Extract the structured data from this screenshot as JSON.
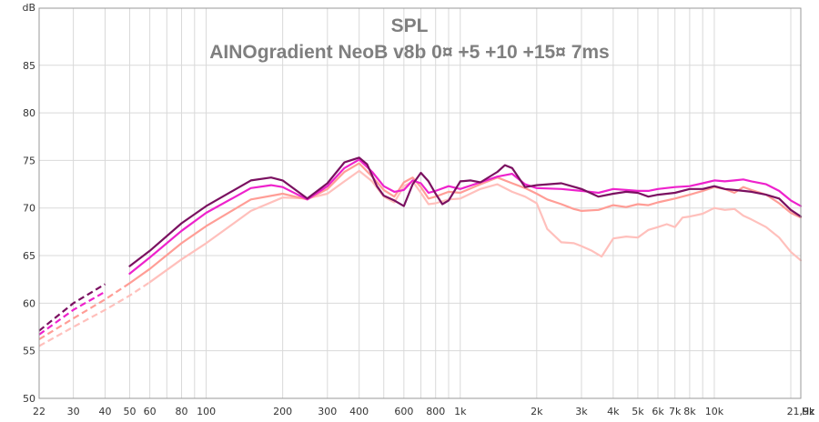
{
  "chart_data": {
    "type": "line",
    "title": "SPL",
    "subtitle": "AINOgradient NeoB v8b 0¤ +5 +10 +15¤ 7ms",
    "ylabel": "dB",
    "xunit": "Hz",
    "xscale": "log",
    "xlim": [
      22,
      21900
    ],
    "ylim": [
      50,
      91
    ],
    "grid": true,
    "y_ticks": [
      50,
      55,
      60,
      65,
      70,
      75,
      80,
      85
    ],
    "x_ticks": [
      {
        "v": 22,
        "label": "22"
      },
      {
        "v": 30,
        "label": "30"
      },
      {
        "v": 40,
        "label": "40"
      },
      {
        "v": 50,
        "label": "50"
      },
      {
        "v": 60,
        "label": "60"
      },
      {
        "v": 80,
        "label": "80"
      },
      {
        "v": 100,
        "label": "100"
      },
      {
        "v": 200,
        "label": "200"
      },
      {
        "v": 300,
        "label": "300"
      },
      {
        "v": 400,
        "label": "400"
      },
      {
        "v": 600,
        "label": "600"
      },
      {
        "v": 800,
        "label": "800"
      },
      {
        "v": 1000,
        "label": "1k"
      },
      {
        "v": 2000,
        "label": "2k"
      },
      {
        "v": 3000,
        "label": "3k"
      },
      {
        "v": 4000,
        "label": "4k"
      },
      {
        "v": 5000,
        "label": "5k"
      },
      {
        "v": 6000,
        "label": "6k"
      },
      {
        "v": 7000,
        "label": "7k"
      },
      {
        "v": 8000,
        "label": "8k"
      },
      {
        "v": 10000,
        "label": "10k"
      },
      {
        "v": 21900,
        "label": "21,9k"
      }
    ],
    "series": [
      {
        "color": "#ffc0bc",
        "dashed_until": 60,
        "points": [
          [
            22,
            55.5
          ],
          [
            30,
            57.5
          ],
          [
            40,
            59.3
          ],
          [
            50,
            60.8
          ],
          [
            60,
            62.2
          ],
          [
            80,
            64.6
          ],
          [
            100,
            66.3
          ],
          [
            150,
            69.7
          ],
          [
            200,
            71.1
          ],
          [
            250,
            71.0
          ],
          [
            300,
            71.5
          ],
          [
            350,
            72.8
          ],
          [
            400,
            73.9
          ],
          [
            450,
            72.8
          ],
          [
            500,
            71.2
          ],
          [
            550,
            70.6
          ],
          [
            600,
            72.3
          ],
          [
            650,
            72.8
          ],
          [
            700,
            71.6
          ],
          [
            750,
            70.4
          ],
          [
            800,
            70.5
          ],
          [
            900,
            70.9
          ],
          [
            1000,
            71.0
          ],
          [
            1200,
            72.0
          ],
          [
            1400,
            72.5
          ],
          [
            1600,
            71.7
          ],
          [
            1800,
            71.2
          ],
          [
            2000,
            70.5
          ],
          [
            2200,
            67.8
          ],
          [
            2500,
            66.4
          ],
          [
            2800,
            66.3
          ],
          [
            3000,
            66.0
          ],
          [
            3300,
            65.5
          ],
          [
            3600,
            64.9
          ],
          [
            4000,
            66.8
          ],
          [
            4500,
            67.0
          ],
          [
            5000,
            66.9
          ],
          [
            5500,
            67.7
          ],
          [
            6000,
            68.0
          ],
          [
            6500,
            68.3
          ],
          [
            7000,
            68.0
          ],
          [
            7500,
            69.0
          ],
          [
            8000,
            69.1
          ],
          [
            9000,
            69.4
          ],
          [
            10000,
            70.0
          ],
          [
            11000,
            69.8
          ],
          [
            12000,
            69.9
          ],
          [
            13000,
            69.2
          ],
          [
            14000,
            68.8
          ],
          [
            16000,
            68.0
          ],
          [
            18000,
            66.9
          ],
          [
            20000,
            65.4
          ],
          [
            21900,
            64.5
          ]
        ]
      },
      {
        "color": "#ff9d96",
        "dashed_until": 50,
        "points": [
          [
            22,
            56.2
          ],
          [
            30,
            58.4
          ],
          [
            40,
            60.4
          ],
          [
            50,
            62.1
          ],
          [
            60,
            63.6
          ],
          [
            80,
            66.3
          ],
          [
            100,
            68.1
          ],
          [
            150,
            70.9
          ],
          [
            200,
            71.5
          ],
          [
            250,
            70.9
          ],
          [
            300,
            72.0
          ],
          [
            350,
            73.8
          ],
          [
            400,
            74.7
          ],
          [
            450,
            73.3
          ],
          [
            500,
            71.9
          ],
          [
            550,
            71.2
          ],
          [
            600,
            72.7
          ],
          [
            650,
            73.2
          ],
          [
            700,
            72.2
          ],
          [
            750,
            71.0
          ],
          [
            800,
            71.2
          ],
          [
            900,
            71.7
          ],
          [
            1000,
            71.6
          ],
          [
            1200,
            72.5
          ],
          [
            1400,
            73.2
          ],
          [
            1600,
            72.6
          ],
          [
            1800,
            72.1
          ],
          [
            2000,
            71.5
          ],
          [
            2200,
            70.9
          ],
          [
            2500,
            70.4
          ],
          [
            2800,
            69.9
          ],
          [
            3000,
            69.7
          ],
          [
            3500,
            69.8
          ],
          [
            4000,
            70.3
          ],
          [
            4500,
            70.1
          ],
          [
            5000,
            70.4
          ],
          [
            5500,
            70.3
          ],
          [
            6000,
            70.6
          ],
          [
            7000,
            71.0
          ],
          [
            8000,
            71.4
          ],
          [
            9000,
            71.8
          ],
          [
            10000,
            72.2
          ],
          [
            11000,
            72.0
          ],
          [
            12000,
            71.6
          ],
          [
            13000,
            72.2
          ],
          [
            14000,
            71.9
          ],
          [
            16000,
            71.4
          ],
          [
            18000,
            70.5
          ],
          [
            20000,
            69.5
          ],
          [
            21900,
            69.0
          ]
        ]
      },
      {
        "color": "#ee22cc",
        "dashed_until": 45,
        "points": [
          [
            22,
            56.7
          ],
          [
            30,
            59.3
          ],
          [
            40,
            61.2
          ],
          [
            50,
            63.1
          ],
          [
            60,
            64.8
          ],
          [
            80,
            67.6
          ],
          [
            100,
            69.5
          ],
          [
            150,
            72.1
          ],
          [
            180,
            72.4
          ],
          [
            200,
            72.2
          ],
          [
            250,
            70.9
          ],
          [
            300,
            72.3
          ],
          [
            350,
            74.2
          ],
          [
            400,
            75.1
          ],
          [
            450,
            73.8
          ],
          [
            500,
            72.3
          ],
          [
            550,
            71.7
          ],
          [
            600,
            71.9
          ],
          [
            650,
            72.9
          ],
          [
            700,
            72.6
          ],
          [
            750,
            71.6
          ],
          [
            800,
            71.8
          ],
          [
            900,
            72.3
          ],
          [
            1000,
            72.0
          ],
          [
            1200,
            72.7
          ],
          [
            1400,
            73.3
          ],
          [
            1600,
            73.6
          ],
          [
            1800,
            72.5
          ],
          [
            2000,
            72.1
          ],
          [
            2500,
            72.0
          ],
          [
            3000,
            71.8
          ],
          [
            3500,
            71.6
          ],
          [
            4000,
            72.0
          ],
          [
            4500,
            71.9
          ],
          [
            5000,
            71.8
          ],
          [
            5500,
            71.8
          ],
          [
            6000,
            72.0
          ],
          [
            7000,
            72.2
          ],
          [
            8000,
            72.3
          ],
          [
            9000,
            72.6
          ],
          [
            10000,
            72.9
          ],
          [
            11000,
            72.8
          ],
          [
            12000,
            72.9
          ],
          [
            13000,
            73.0
          ],
          [
            14000,
            72.8
          ],
          [
            16000,
            72.5
          ],
          [
            18000,
            71.8
          ],
          [
            20000,
            70.8
          ],
          [
            21900,
            70.2
          ]
        ]
      },
      {
        "color": "#7a1060",
        "dashed_until": 45,
        "points": [
          [
            22,
            57.1
          ],
          [
            30,
            60.0
          ],
          [
            40,
            62.0
          ],
          [
            50,
            63.9
          ],
          [
            60,
            65.5
          ],
          [
            80,
            68.4
          ],
          [
            100,
            70.2
          ],
          [
            150,
            72.9
          ],
          [
            180,
            73.2
          ],
          [
            200,
            72.9
          ],
          [
            250,
            71.0
          ],
          [
            300,
            72.6
          ],
          [
            350,
            74.8
          ],
          [
            400,
            75.3
          ],
          [
            430,
            74.6
          ],
          [
            470,
            72.3
          ],
          [
            500,
            71.3
          ],
          [
            550,
            70.8
          ],
          [
            600,
            70.2
          ],
          [
            650,
            72.5
          ],
          [
            700,
            73.7
          ],
          [
            750,
            72.8
          ],
          [
            800,
            71.5
          ],
          [
            850,
            70.4
          ],
          [
            900,
            70.8
          ],
          [
            1000,
            72.8
          ],
          [
            1100,
            72.9
          ],
          [
            1200,
            72.7
          ],
          [
            1400,
            73.8
          ],
          [
            1500,
            74.5
          ],
          [
            1600,
            74.2
          ],
          [
            1800,
            72.2
          ],
          [
            2000,
            72.4
          ],
          [
            2500,
            72.6
          ],
          [
            3000,
            72.0
          ],
          [
            3500,
            71.2
          ],
          [
            4000,
            71.5
          ],
          [
            4500,
            71.7
          ],
          [
            5000,
            71.6
          ],
          [
            5500,
            71.2
          ],
          [
            6000,
            71.4
          ],
          [
            7000,
            71.6
          ],
          [
            8000,
            72.0
          ],
          [
            9000,
            72.0
          ],
          [
            10000,
            72.3
          ],
          [
            11000,
            72.0
          ],
          [
            12000,
            71.9
          ],
          [
            13000,
            71.8
          ],
          [
            14000,
            71.7
          ],
          [
            16000,
            71.4
          ],
          [
            18000,
            71.0
          ],
          [
            20000,
            69.8
          ],
          [
            21900,
            69.1
          ]
        ]
      }
    ]
  }
}
